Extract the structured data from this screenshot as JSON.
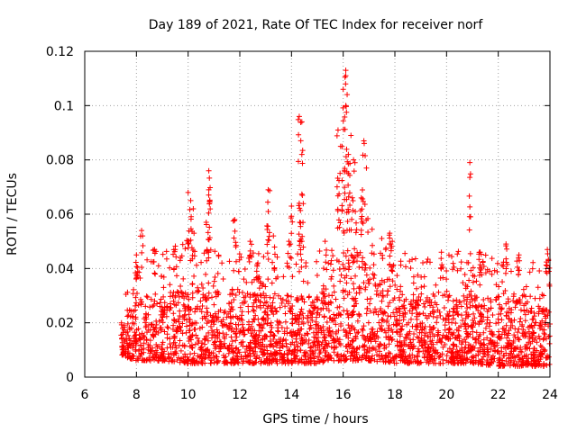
{
  "chart_data": {
    "type": "scatter",
    "title": "Day 189 of 2021, Rate Of TEC Index for receiver norf",
    "xlabel": "GPS time / hours",
    "ylabel": "ROTI / TECUs",
    "xlim": [
      6,
      24
    ],
    "ylim": [
      0,
      0.12
    ],
    "xticks": [
      6,
      8,
      10,
      12,
      14,
      16,
      18,
      20,
      22,
      24
    ],
    "yticks": [
      0,
      0.02,
      0.04,
      0.06,
      0.08,
      0.1,
      0.12
    ],
    "xtick_labels": [
      "6",
      "8",
      "10",
      "12",
      "14",
      "16",
      "18",
      "20",
      "22",
      "24"
    ],
    "ytick_labels": [
      "0",
      "0.02",
      "0.04",
      "0.06",
      "0.08",
      "0.1",
      "0.12"
    ],
    "grid": true,
    "marker": "+",
    "color": "#ff0000",
    "series": [
      {
        "name": "ROTI",
        "envelope": {
          "description": "dense band of ROTI samples from ~7.4 h to 24 h",
          "hours": [
            7.4,
            8.0,
            9.0,
            10.0,
            11.0,
            12.0,
            13.0,
            14.0,
            15.0,
            15.5,
            16.0,
            16.5,
            17.0,
            18.0,
            19.0,
            20.0,
            21.0,
            22.0,
            23.0,
            24.0
          ],
          "band_low": [
            0.008,
            0.006,
            0.006,
            0.005,
            0.005,
            0.005,
            0.005,
            0.005,
            0.005,
            0.006,
            0.006,
            0.006,
            0.006,
            0.005,
            0.005,
            0.005,
            0.005,
            0.004,
            0.004,
            0.004
          ],
          "band_high": [
            0.022,
            0.03,
            0.03,
            0.035,
            0.032,
            0.03,
            0.033,
            0.03,
            0.03,
            0.038,
            0.045,
            0.045,
            0.04,
            0.03,
            0.03,
            0.032,
            0.03,
            0.03,
            0.028,
            0.025
          ]
        },
        "spikes": [
          {
            "x": 8.2,
            "y": 0.054
          },
          {
            "x": 8.0,
            "y": 0.045
          },
          {
            "x": 8.7,
            "y": 0.047
          },
          {
            "x": 10.0,
            "y": 0.068
          },
          {
            "x": 10.1,
            "y": 0.065
          },
          {
            "x": 10.2,
            "y": 0.062
          },
          {
            "x": 10.8,
            "y": 0.076
          },
          {
            "x": 10.8,
            "y": 0.069
          },
          {
            "x": 10.7,
            "y": 0.057
          },
          {
            "x": 11.8,
            "y": 0.058
          },
          {
            "x": 12.4,
            "y": 0.05
          },
          {
            "x": 13.1,
            "y": 0.069
          },
          {
            "x": 13.1,
            "y": 0.061
          },
          {
            "x": 13.3,
            "y": 0.052
          },
          {
            "x": 14.3,
            "y": 0.096
          },
          {
            "x": 14.4,
            "y": 0.094
          },
          {
            "x": 14.4,
            "y": 0.082
          },
          {
            "x": 14.3,
            "y": 0.064
          },
          {
            "x": 14.0,
            "y": 0.063
          },
          {
            "x": 13.9,
            "y": 0.05
          },
          {
            "x": 14.4,
            "y": 0.05
          },
          {
            "x": 15.8,
            "y": 0.091
          },
          {
            "x": 15.9,
            "y": 0.085
          },
          {
            "x": 16.1,
            "y": 0.113
          },
          {
            "x": 16.1,
            "y": 0.111
          },
          {
            "x": 16.0,
            "y": 0.106
          },
          {
            "x": 16.1,
            "y": 0.1
          },
          {
            "x": 16.3,
            "y": 0.089
          },
          {
            "x": 16.2,
            "y": 0.082
          },
          {
            "x": 16.4,
            "y": 0.08
          },
          {
            "x": 16.8,
            "y": 0.087
          },
          {
            "x": 16.9,
            "y": 0.077
          },
          {
            "x": 16.7,
            "y": 0.066
          },
          {
            "x": 16.2,
            "y": 0.075
          },
          {
            "x": 17.8,
            "y": 0.053
          },
          {
            "x": 17.9,
            "y": 0.05
          },
          {
            "x": 19.8,
            "y": 0.046
          },
          {
            "x": 20.9,
            "y": 0.079
          },
          {
            "x": 21.3,
            "y": 0.046
          },
          {
            "x": 22.3,
            "y": 0.049
          },
          {
            "x": 22.8,
            "y": 0.045
          },
          {
            "x": 23.9,
            "y": 0.047
          },
          {
            "x": 12.7,
            "y": 0.042
          },
          {
            "x": 15.3,
            "y": 0.05
          },
          {
            "x": 9.5,
            "y": 0.047
          }
        ]
      }
    ]
  }
}
